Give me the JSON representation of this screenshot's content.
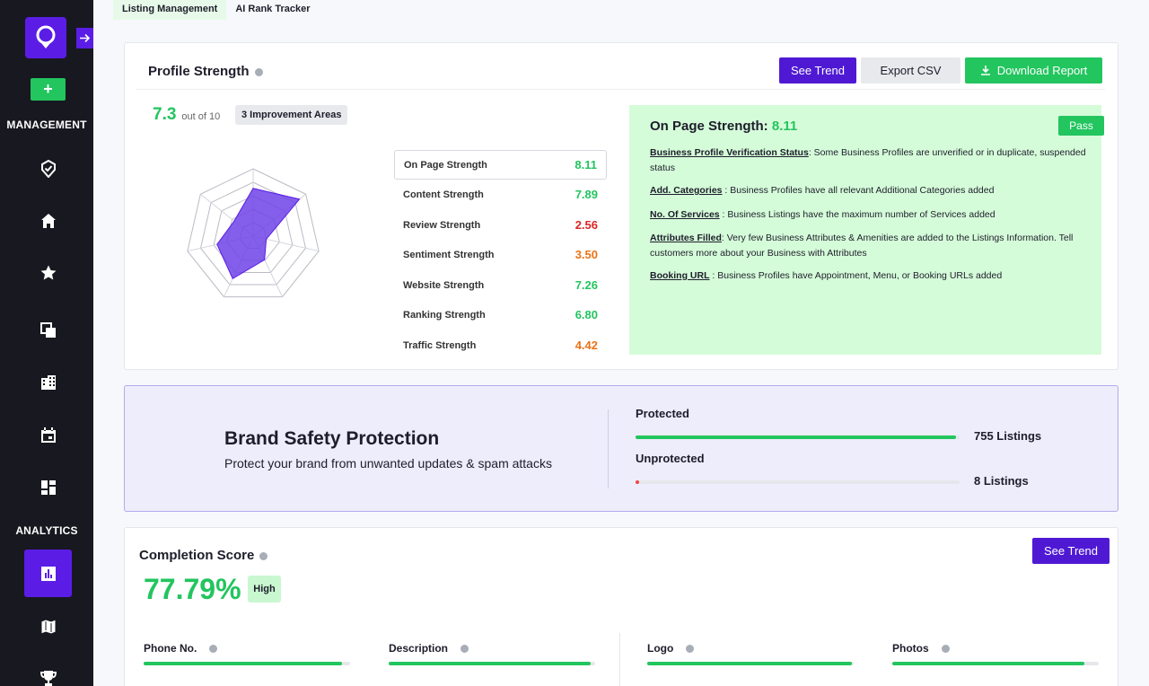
{
  "tabs": [
    {
      "label": "Listing Management"
    },
    {
      "label": "AI Rank Tracker"
    }
  ],
  "sidebar": {
    "sections": {
      "management": "MANAGEMENT",
      "analytics": "ANALYTICS"
    },
    "add_label": "+",
    "icons": [
      "badge-check-icon",
      "home-icon",
      "star-icon",
      "copy-icon",
      "building-icon",
      "calendar-icon",
      "dashboard-icon",
      "analytics-icon",
      "map-icon",
      "trophy-icon"
    ]
  },
  "profile": {
    "title": "Profile Strength",
    "score": "7.3",
    "score_suffix": "out of 10",
    "improvement": "3 Improvement Areas",
    "buttons": {
      "trend": "See Trend",
      "export": "Export CSV",
      "download": "Download Report"
    },
    "radar_level": [
      0.71,
      0.88,
      0.2,
      0.39,
      0.7,
      0.55,
      0.36
    ],
    "rows": [
      {
        "label": "On Page Strength",
        "value": "8.11",
        "color": "#22c55e"
      },
      {
        "label": "Content Strength",
        "value": "7.89",
        "color": "#22c55e"
      },
      {
        "label": "Review Strength",
        "value": "2.56",
        "color": "#dc2626"
      },
      {
        "label": "Sentiment Strength",
        "value": "3.50",
        "color": "#ea7317"
      },
      {
        "label": "Website Strength",
        "value": "7.26",
        "color": "#22c55e"
      },
      {
        "label": "Ranking Strength",
        "value": "6.80",
        "color": "#22c55e"
      },
      {
        "label": "Traffic Strength",
        "value": "4.42",
        "color": "#ea7317"
      }
    ]
  },
  "onpage": {
    "title": "On Page Strength:",
    "score": "8.11",
    "badge": "Pass",
    "items": [
      {
        "key": "Business Profile Verification Status",
        "text": ": Some Business Profiles are unverified or in duplicate, suspended status"
      },
      {
        "key": "Add. Categories",
        "text": " : Business Profiles have all relevant Additional Categories added"
      },
      {
        "key": "No. Of Services",
        "text": " : Business Listings have the maximum number of Services added"
      },
      {
        "key": "Attributes Filled",
        "text": ": Very few Business Attributes & Amenities are added to the Listings Information. Tell customers more about your Business with Attributes"
      },
      {
        "key": "Booking URL",
        "text": " : Business Profiles have Appointment, Menu, or Booking URLs added"
      }
    ]
  },
  "brand": {
    "title": "Brand Safety Protection",
    "subtitle": "Protect your brand from unwanted updates & spam attacks",
    "protected": {
      "label": "Protected",
      "value": "755 Listings",
      "fraction": 0.99
    },
    "unprotected": {
      "label": "Unprotected",
      "value": "8 Listings",
      "fraction": 0.01
    }
  },
  "completion": {
    "title": "Completion Score",
    "score": "77.79%",
    "badge": "High",
    "trend": "See Trend",
    "items": [
      {
        "label": "Phone No.",
        "fraction": 0.96
      },
      {
        "label": "Description",
        "fraction": 0.98
      },
      {
        "label": "Logo",
        "fraction": 0.99
      },
      {
        "label": "Photos",
        "fraction": 0.93
      }
    ]
  },
  "colors": {
    "brand": "#5b1de6",
    "green": "#22c55e",
    "sidebar": "#181820"
  }
}
